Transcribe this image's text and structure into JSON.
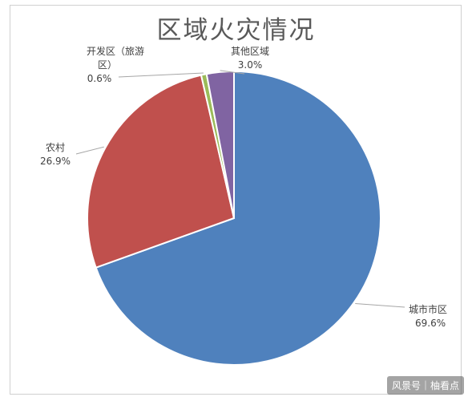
{
  "chart_data": {
    "type": "pie",
    "title": "区域火灾情况",
    "slices": [
      {
        "label": "城市市区",
        "value": 69.6,
        "value_text": "69.6%",
        "color": "#4F81BD"
      },
      {
        "label": "农村",
        "value": 26.9,
        "value_text": "26.9%",
        "color": "#C0504D"
      },
      {
        "label": "开发区（旅游区）",
        "value": 0.6,
        "value_text": "0.6%",
        "color": "#9BBB59"
      },
      {
        "label": "其他区域",
        "value": 3.0,
        "value_text": "3.0%",
        "color": "#8064A2"
      }
    ],
    "legend": "none",
    "data_labels": "outside with leader lines"
  },
  "watermark": "风景号｜柚看点"
}
